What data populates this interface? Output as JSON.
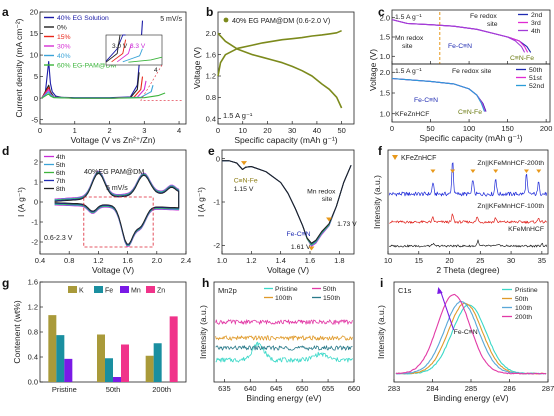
{
  "chart_data": [
    {
      "id": "a",
      "type": "line",
      "panel_label": "a",
      "xlabel": "Voltage (V vs Zn²⁺/Zn)",
      "ylabel": "Current density (mA cm⁻²)",
      "xlim": [
        0,
        4.2
      ],
      "ylim": [
        -6,
        20
      ],
      "xticks": [
        0,
        1,
        2,
        3,
        4
      ],
      "yticks": [
        -5,
        0,
        5,
        10,
        15,
        20
      ],
      "annotation": "5 mV/s",
      "inset": {
        "labels": [
          "3.0 V",
          "3.3 V",
          "4"
        ],
        "label_colors": [
          "#222222",
          "#c72bd6",
          "#222222"
        ]
      },
      "series": [
        {
          "name": "40% EG Solution",
          "color": "#1a1aa6",
          "x": [
            0.05,
            0.15,
            0.25,
            0.3,
            0.35,
            0.45,
            0.6,
            1.0,
            2.0,
            2.6,
            2.8,
            2.9,
            2.95
          ],
          "y": [
            0,
            1,
            8.5,
            3.5,
            1.5,
            0.5,
            0.2,
            0.1,
            0.1,
            0.3,
            3,
            12,
            18
          ]
        },
        {
          "name": "0%",
          "color": "#222222",
          "x": [
            0.05,
            0.25,
            0.3,
            0.4,
            1,
            2,
            2.6,
            2.8,
            2.85
          ],
          "y": [
            0,
            3,
            1.5,
            0.3,
            0,
            0,
            0.1,
            2,
            6
          ]
        },
        {
          "name": "15%",
          "color": "#e8261a",
          "x": [
            0.05,
            0.25,
            0.3,
            0.4,
            1,
            2,
            2.7,
            2.9,
            2.95
          ],
          "y": [
            0,
            2.5,
            1,
            0.2,
            0,
            0,
            0.2,
            2,
            5
          ]
        },
        {
          "name": "30%",
          "color": "#d62fd4",
          "x": [
            0.05,
            0.25,
            0.3,
            0.4,
            1,
            2,
            2.8,
            3.0,
            3.05
          ],
          "y": [
            0,
            2,
            1,
            0.2,
            0,
            0,
            0.2,
            2,
            4
          ]
        },
        {
          "name": "40%",
          "color": "#3aa3d8",
          "x": [
            0.05,
            0.25,
            0.3,
            0.4,
            1,
            2,
            2.9,
            3.2,
            3.25
          ],
          "y": [
            0,
            1.5,
            0.8,
            0.2,
            0,
            0,
            0.2,
            1.5,
            3
          ]
        },
        {
          "name": "60% EG-PAM@DM",
          "color": "#3cb43c",
          "x": [
            0.05,
            0.25,
            0.3,
            0.4,
            1,
            2,
            3,
            3.4,
            3.6
          ],
          "y": [
            0,
            1,
            0.5,
            0.1,
            0,
            0,
            0.1,
            0.6,
            1.2
          ]
        }
      ]
    },
    {
      "id": "b",
      "type": "line",
      "panel_label": "b",
      "xlabel": "Specific capacity (mAh g⁻¹)",
      "ylabel": "Voltage (V)",
      "xlim": [
        0,
        55
      ],
      "ylim": [
        0.3,
        2.4
      ],
      "xticks": [
        0,
        10,
        20,
        30,
        40,
        50
      ],
      "yticks": [
        0.4,
        0.8,
        1.2,
        1.6,
        2.0
      ],
      "annotation": "1.5 A g⁻¹",
      "series": [
        {
          "name": "40% EG PAM@DM (0.6-2.0 V)",
          "color": "#7c8a1c",
          "x": [
            0,
            1,
            3,
            8,
            14,
            18,
            22,
            26,
            30,
            34,
            38,
            42,
            45,
            48,
            50
          ],
          "y": [
            1.2,
            1.45,
            1.6,
            1.72,
            1.78,
            1.82,
            1.85,
            1.88,
            1.9,
            1.92,
            1.95,
            1.97,
            1.99,
            2.01,
            2.05
          ]
        },
        {
          "name": "",
          "color": "#7c8a1c",
          "x": [
            0,
            3,
            8,
            14,
            18,
            22,
            26,
            30,
            34,
            38,
            42,
            45,
            48,
            50
          ],
          "y": [
            2.0,
            1.85,
            1.7,
            1.6,
            1.55,
            1.5,
            1.45,
            1.38,
            1.3,
            1.2,
            1.05,
            0.95,
            0.8,
            0.6
          ]
        }
      ]
    },
    {
      "id": "c",
      "type": "line",
      "panel_label": "c",
      "xlabel": "Specific capacity (mAh g⁻¹)",
      "ylabel": "Voltage (V)",
      "xlim": [
        0,
        205
      ],
      "xticks": [
        0,
        50,
        100,
        150,
        200
      ],
      "yticks_top": [
        1.0,
        1.5,
        2.0
      ],
      "yticks_bottom": [
        1.0,
        1.5,
        2.0
      ],
      "top": {
        "rate": "1.5 A g⁻¹",
        "labels": [
          "Mn redox site",
          "Fe redox site",
          "Fe-C≡N",
          "C≡N-Fe"
        ],
        "series": [
          {
            "name": "2nd",
            "color": "#1f2bb2",
            "x": [
              0,
              20,
              50,
              80,
              110,
              130,
              150,
              165,
              175,
              180
            ],
            "y": [
              1.95,
              1.85,
              1.82,
              1.78,
              1.7,
              1.6,
              1.5,
              1.4,
              1.25,
              1.1
            ]
          },
          {
            "name": "3rd",
            "color": "#e02ad3",
            "x": [
              0,
              20,
              50,
              80,
              110,
              130,
              150,
              165,
              172,
              176
            ],
            "y": [
              1.95,
              1.85,
              1.82,
              1.78,
              1.7,
              1.6,
              1.5,
              1.4,
              1.25,
              1.1
            ]
          },
          {
            "name": "4th",
            "color": "#a23cd8",
            "x": [
              0,
              20,
              50,
              80,
              110,
              130,
              150,
              160,
              168,
              172
            ],
            "y": [
              1.95,
              1.85,
              1.82,
              1.78,
              1.7,
              1.6,
              1.5,
              1.4,
              1.25,
              1.1
            ]
          }
        ]
      },
      "bottom": {
        "rate": "1.5 A g⁻¹",
        "labels": [
          "Fe redox site",
          "Fe-C≡N",
          "KFeZnHCF",
          "C≡N-Fe"
        ],
        "series": [
          {
            "name": "50th",
            "color": "#1f2bb2",
            "x": [
              0,
              20,
              50,
              80,
              100,
              110,
              118,
              122
            ],
            "y": [
              1.85,
              1.82,
              1.78,
              1.72,
              1.6,
              1.45,
              1.25,
              1.05
            ]
          },
          {
            "name": "51st",
            "color": "#e02ad3",
            "x": [
              0,
              20,
              50,
              80,
              100,
              110,
              117,
              121
            ],
            "y": [
              1.85,
              1.82,
              1.78,
              1.72,
              1.6,
              1.45,
              1.25,
              1.05
            ]
          },
          {
            "name": "52nd",
            "color": "#2a9cd8",
            "x": [
              0,
              20,
              50,
              80,
              100,
              110,
              116,
              120
            ],
            "y": [
              1.85,
              1.82,
              1.78,
              1.72,
              1.6,
              1.45,
              1.25,
              1.05
            ]
          }
        ]
      }
    },
    {
      "id": "d",
      "type": "line",
      "panel_label": "d",
      "xlabel": "Voltage (V)",
      "ylabel": "I (A g⁻¹)",
      "xlim": [
        0.4,
        2.4
      ],
      "ylim": [
        -2.6,
        2.6
      ],
      "xticks": [
        0.4,
        0.8,
        1.2,
        1.6,
        2.0,
        2.4
      ],
      "yticks": [
        -2,
        -1,
        0,
        1,
        2
      ],
      "annotations": [
        "40%EG PAM@DM",
        "5 mV/s",
        "0.6-2.3 V"
      ],
      "series": [
        {
          "name": "4th",
          "color": "#c72bd6"
        },
        {
          "name": "5th",
          "color": "#3aa3d8"
        },
        {
          "name": "6th",
          "color": "#3cb43c"
        },
        {
          "name": "7th",
          "color": "#1f2bb2"
        },
        {
          "name": "8th",
          "color": "#222222"
        }
      ]
    },
    {
      "id": "e",
      "type": "line",
      "panel_label": "e",
      "xlabel": "Voltage (V)",
      "ylabel": "I (A g⁻¹)",
      "xlim": [
        1.0,
        1.9
      ],
      "ylim": [
        -2.2,
        0.2
      ],
      "xticks": [
        1.0,
        1.2,
        1.4,
        1.6,
        1.8
      ],
      "yticks": [
        -2,
        -1,
        0
      ],
      "annotations": [
        {
          "text": "C≡N-Fe",
          "value": "1.15 V"
        },
        {
          "text": "Mn redox site",
          "value": "1.73 V"
        },
        {
          "text": "Fe-C≡N",
          "value": "1.61 V"
        }
      ],
      "x": [
        1.0,
        1.05,
        1.1,
        1.14,
        1.16,
        1.2,
        1.3,
        1.4,
        1.45,
        1.5,
        1.55,
        1.58,
        1.61,
        1.64,
        1.68,
        1.73,
        1.78,
        1.83,
        1.88
      ],
      "series": [
        {
          "name": "4th",
          "color": "#c72bd6",
          "y": [
            -0.05,
            -0.05,
            -0.1,
            -0.25,
            -0.2,
            -0.18,
            -0.3,
            -0.55,
            -0.8,
            -1.15,
            -1.55,
            -1.85,
            -2.02,
            -1.95,
            -1.75,
            -1.55,
            -1.1,
            -0.55,
            -0.15
          ]
        },
        {
          "name": "5th",
          "color": "#3aa3d8",
          "y": [
            -0.05,
            -0.05,
            -0.1,
            -0.25,
            -0.2,
            -0.18,
            -0.3,
            -0.55,
            -0.8,
            -1.15,
            -1.55,
            -1.85,
            -2.0,
            -1.93,
            -1.73,
            -1.54,
            -1.1,
            -0.55,
            -0.15
          ]
        },
        {
          "name": "6th",
          "color": "#3cb43c",
          "y": [
            -0.05,
            -0.05,
            -0.1,
            -0.25,
            -0.2,
            -0.18,
            -0.3,
            -0.55,
            -0.8,
            -1.15,
            -1.55,
            -1.85,
            -1.98,
            -1.91,
            -1.71,
            -1.52,
            -1.1,
            -0.55,
            -0.15
          ]
        },
        {
          "name": "7th",
          "color": "#1f2bb2",
          "y": [
            -0.05,
            -0.05,
            -0.1,
            -0.25,
            -0.2,
            -0.18,
            -0.3,
            -0.55,
            -0.8,
            -1.15,
            -1.55,
            -1.83,
            -1.96,
            -1.89,
            -1.69,
            -1.5,
            -1.1,
            -0.55,
            -0.15
          ]
        },
        {
          "name": "8th",
          "color": "#222222",
          "y": [
            -0.05,
            -0.05,
            -0.1,
            -0.25,
            -0.2,
            -0.18,
            -0.3,
            -0.55,
            -0.8,
            -1.15,
            -1.55,
            -1.83,
            -1.95,
            -1.88,
            -1.68,
            -1.5,
            -1.1,
            -0.55,
            -0.15
          ]
        }
      ]
    },
    {
      "id": "f",
      "type": "line",
      "panel_label": "f",
      "xlabel": "2 Theta (degree)",
      "ylabel": "Intensity (a.u.)",
      "xlim": [
        10,
        36
      ],
      "xticks": [
        10,
        15,
        20,
        25,
        30,
        35
      ],
      "legend": "KFeZnHCF",
      "labels": [
        "Zn||KFeMnHCF-200th",
        "Zn||KFeMnHCF-100th",
        "KFeMnHCF"
      ],
      "peak_marker_positions": [
        17.3,
        20.5,
        23.8,
        27.5,
        32.5,
        34.5
      ],
      "series": [
        {
          "name": "Zn||KFeMnHCF-200th",
          "color": "#1f2bd8",
          "peaks": [
            {
              "x": 17.3,
              "h": 0.35
            },
            {
              "x": 20.5,
              "h": 1.0
            },
            {
              "x": 23.8,
              "h": 0.45
            },
            {
              "x": 27.5,
              "h": 0.5
            },
            {
              "x": 32.5,
              "h": 0.6
            },
            {
              "x": 34.5,
              "h": 0.4
            }
          ]
        },
        {
          "name": "Zn||KFeMnHCF-100th",
          "color": "#e0201a",
          "peaks": [
            {
              "x": 17.3,
              "h": 0.2
            },
            {
              "x": 20.5,
              "h": 0.35
            },
            {
              "x": 24.5,
              "h": 0.25
            },
            {
              "x": 27.5,
              "h": 0.2
            },
            {
              "x": 34.5,
              "h": 0.2
            }
          ]
        },
        {
          "name": "KFeMnHCF",
          "color": "#222222",
          "peaks": [
            {
              "x": 17.3,
              "h": 0.15
            },
            {
              "x": 24.6,
              "h": 0.3
            },
            {
              "x": 28,
              "h": 0.15
            },
            {
              "x": 35,
              "h": 0.15
            }
          ]
        }
      ]
    },
    {
      "id": "g",
      "type": "bar",
      "panel_label": "g",
      "xlabel": "",
      "ylabel": "Contenent (wt%)",
      "ylim": [
        0,
        1.6
      ],
      "yticks": [
        0.0,
        0.4,
        0.8,
        1.2,
        1.6
      ],
      "categories": [
        "Pristine",
        "50th",
        "200th"
      ],
      "series": [
        {
          "name": "K",
          "color": "#a99a3a",
          "values": [
            1.07,
            0.76,
            0.42
          ]
        },
        {
          "name": "Fe",
          "color": "#1a8fa0",
          "values": [
            0.75,
            0.38,
            0.62
          ]
        },
        {
          "name": "Mn",
          "color": "#7a1ae6",
          "values": [
            0.37,
            0.08,
            0.0
          ]
        },
        {
          "name": "Zn",
          "color": "#f0338a",
          "values": [
            0.0,
            0.6,
            1.05
          ]
        }
      ]
    },
    {
      "id": "h",
      "type": "line",
      "panel_label": "h",
      "xlabel": "Binding energy (eV)",
      "ylabel": "Intensity (a.u.)",
      "xlim": [
        633,
        660
      ],
      "xticks": [
        635,
        640,
        645,
        650,
        655,
        660
      ],
      "label": "Mn2p",
      "series": [
        {
          "name": "Pristine",
          "color": "#3ad8c8"
        },
        {
          "name": "50th",
          "color": "#e23aa6"
        },
        {
          "name": "100th",
          "color": "#e09a2a"
        },
        {
          "name": "150th",
          "color": "#2a7a8a"
        }
      ]
    },
    {
      "id": "i",
      "type": "line",
      "panel_label": "i",
      "xlabel": "Binding energy (eV)",
      "ylabel": "Intensity (a.u.)",
      "xlim": [
        283,
        287
      ],
      "xticks": [
        283,
        284,
        285,
        286,
        287
      ],
      "label": "C1s",
      "annotation": "Fe-C≡N",
      "series": [
        {
          "name": "Pristine",
          "color": "#3ad8c8",
          "center": 284.95,
          "width": 0.62
        },
        {
          "name": "50th",
          "color": "#e09a2a",
          "center": 284.85,
          "width": 0.62
        },
        {
          "name": "100th",
          "color": "#5aa8d8",
          "center": 284.75,
          "width": 0.62
        },
        {
          "name": "200th",
          "color": "#e23aa6",
          "center": 284.55,
          "width": 0.6
        }
      ]
    }
  ]
}
